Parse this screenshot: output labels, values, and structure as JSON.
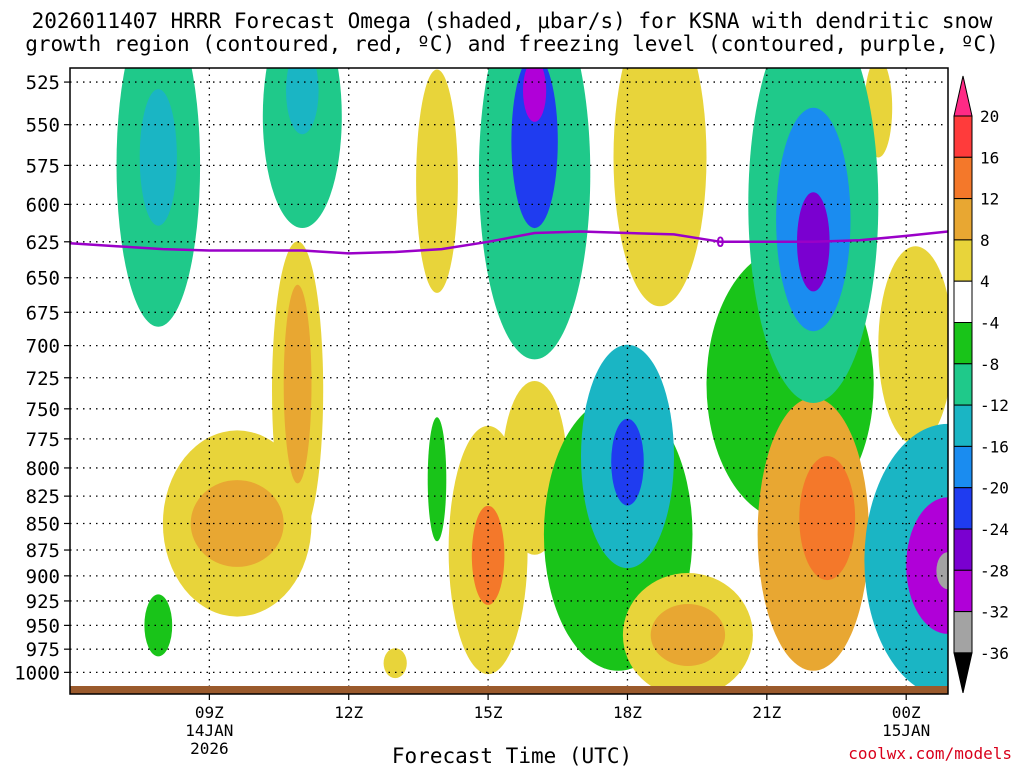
{
  "header": {
    "title_line1": "2026011407 HRRR Forecast Omega (shaded, μbar/s) for KSNA with dendritic snow",
    "title_line2": "growth region (contoured, red, ºC) and freezing level (contoured, purple, ºC)"
  },
  "footer": {
    "xlabel": "Forecast Time (UTC)",
    "credit": "coolwx.com/models"
  },
  "chart_data": {
    "type": "heatmap",
    "x_hours": [
      6,
      24.9
    ],
    "x_ticks": [
      {
        "hour": 9,
        "label": "09Z",
        "date1": "14JAN",
        "date2": "2026"
      },
      {
        "hour": 12,
        "label": "12Z",
        "date1": "",
        "date2": ""
      },
      {
        "hour": 15,
        "label": "15Z",
        "date1": "",
        "date2": ""
      },
      {
        "hour": 18,
        "label": "18Z",
        "date1": "",
        "date2": ""
      },
      {
        "hour": 21,
        "label": "21Z",
        "date1": "",
        "date2": ""
      },
      {
        "hour": 24,
        "label": "00Z",
        "date1": "15JAN",
        "date2": ""
      }
    ],
    "pressure_levels": [
      525,
      550,
      575,
      600,
      625,
      650,
      675,
      700,
      725,
      750,
      775,
      800,
      825,
      850,
      875,
      900,
      925,
      950,
      975,
      1000
    ],
    "y_range_hpa": [
      517,
      1015
    ],
    "colorbar": {
      "labels": [
        "20",
        "16",
        "12",
        "8",
        "4",
        "-4",
        "-8",
        "-12",
        "-16",
        "-20",
        "-24",
        "-28",
        "-32",
        "-36"
      ],
      "colors": [
        "#ff2a85",
        "#ff3b3b",
        "#f4782a",
        "#e8a732",
        "#e8d43a",
        "#ffffff",
        "#19c419",
        "#1fc98a",
        "#1ab5c4",
        "#1a8cf0",
        "#1f3cf0",
        "#7a00d0",
        "#b000d8",
        "#a3a3a3",
        "#000000"
      ]
    },
    "freezing_level_label": "0",
    "freezing_level": [
      [
        6,
        626
      ],
      [
        7,
        628
      ],
      [
        8,
        630
      ],
      [
        9,
        631
      ],
      [
        10,
        631
      ],
      [
        11,
        631
      ],
      [
        12,
        633
      ],
      [
        13,
        632
      ],
      [
        14,
        630
      ],
      [
        15,
        625
      ],
      [
        16,
        619
      ],
      [
        17,
        618
      ],
      [
        18,
        619
      ],
      [
        19,
        620
      ],
      [
        20,
        625
      ],
      [
        21,
        625
      ],
      [
        22,
        625
      ],
      [
        23,
        624
      ],
      [
        24,
        621
      ],
      [
        24.9,
        618
      ]
    ],
    "omega_features": [
      {
        "name": "ascent-0800-525",
        "hour": 7.9,
        "hpa": 575,
        "rh": 0.9,
        "rp": 130,
        "val": -8
      },
      {
        "name": "ascent-0800-core",
        "hour": 7.9,
        "hpa": 570,
        "rh": 0.4,
        "rp": 55,
        "val": -12
      },
      {
        "name": "ascent-1100-525",
        "hour": 11.0,
        "hpa": 545,
        "rh": 0.85,
        "rp": 90,
        "val": -8
      },
      {
        "name": "ascent-1100-core",
        "hour": 11.0,
        "hpa": 530,
        "rh": 0.35,
        "rp": 35,
        "val": -12
      },
      {
        "name": "descent-0930-850",
        "hour": 9.6,
        "hpa": 850,
        "rh": 1.6,
        "rp": 75,
        "val": 6
      },
      {
        "name": "descent-0930-core",
        "hour": 9.6,
        "hpa": 850,
        "rh": 1.0,
        "rp": 35,
        "val": 10
      },
      {
        "name": "descent-1100-750",
        "hour": 10.9,
        "hpa": 735,
        "rh": 0.55,
        "rp": 120,
        "val": 6
      },
      {
        "name": "descent-1100-core",
        "hour": 10.9,
        "hpa": 730,
        "rh": 0.3,
        "rp": 80,
        "val": 9
      },
      {
        "name": "descent-1400-590",
        "hour": 13.9,
        "hpa": 585,
        "rh": 0.45,
        "rp": 90,
        "val": 6
      },
      {
        "name": "descent-1500-880",
        "hour": 15.0,
        "hpa": 875,
        "rh": 0.85,
        "rp": 100,
        "val": 7
      },
      {
        "name": "descent-1500-core",
        "hour": 15.0,
        "hpa": 880,
        "rh": 0.35,
        "rp": 40,
        "val": 14
      },
      {
        "name": "descent-1600-790",
        "hour": 16.0,
        "hpa": 800,
        "rh": 0.7,
        "rp": 70,
        "val": 6
      },
      {
        "name": "ascent-1600-550",
        "hour": 16.0,
        "hpa": 580,
        "rh": 1.2,
        "rp": 150,
        "val": -10
      },
      {
        "name": "ascent-1600-core",
        "hour": 16.0,
        "hpa": 560,
        "rh": 0.5,
        "rp": 70,
        "val": -22
      },
      {
        "name": "ascent-1630-top",
        "hour": 16.0,
        "hpa": 530,
        "rh": 0.25,
        "rp": 25,
        "val": -29
      },
      {
        "name": "ascent-1800-800",
        "hour": 18.0,
        "hpa": 790,
        "rh": 1.0,
        "rp": 90,
        "val": -12
      },
      {
        "name": "ascent-1800-core",
        "hour": 18.0,
        "hpa": 795,
        "rh": 0.35,
        "rp": 35,
        "val": -22
      },
      {
        "name": "ascent-1800-wide",
        "hour": 17.8,
        "hpa": 860,
        "rh": 1.6,
        "rp": 110,
        "val": -6
      },
      {
        "name": "descent-1900-950",
        "hour": 19.3,
        "hpa": 960,
        "rh": 1.4,
        "rp": 50,
        "val": 6
      },
      {
        "name": "descent-1900-core",
        "hour": 19.3,
        "hpa": 960,
        "rh": 0.8,
        "rp": 25,
        "val": 10
      },
      {
        "name": "descent-1830-550",
        "hour": 18.7,
        "hpa": 570,
        "rh": 1.0,
        "rp": 120,
        "val": 5
      },
      {
        "name": "ascent-2200-575",
        "hour": 22.0,
        "hpa": 600,
        "rh": 1.4,
        "rp": 160,
        "val": -10
      },
      {
        "name": "ascent-2200-mid",
        "hour": 22.0,
        "hpa": 610,
        "rh": 0.8,
        "rp": 90,
        "val": -18
      },
      {
        "name": "ascent-2200-core",
        "hour": 22.0,
        "hpa": 625,
        "rh": 0.35,
        "rp": 40,
        "val": -26
      },
      {
        "name": "ascent-2150-low",
        "hour": 21.5,
        "hpa": 730,
        "rh": 1.8,
        "rp": 110,
        "val": -7
      },
      {
        "name": "descent-2200-850",
        "hour": 22.0,
        "hpa": 860,
        "rh": 1.2,
        "rp": 110,
        "val": 8
      },
      {
        "name": "descent-2200-core",
        "hour": 22.3,
        "hpa": 845,
        "rh": 0.6,
        "rp": 50,
        "val": 14
      },
      {
        "name": "descent-2330-530",
        "hour": 23.4,
        "hpa": 540,
        "rh": 0.3,
        "rp": 40,
        "val": 6
      },
      {
        "name": "descent-2400-700",
        "hour": 24.2,
        "hpa": 700,
        "rh": 0.8,
        "rp": 80,
        "val": 7
      },
      {
        "name": "ascent-2500-880",
        "hour": 24.9,
        "hpa": 885,
        "rh": 1.8,
        "rp": 110,
        "val": -12
      },
      {
        "name": "ascent-2500-core",
        "hour": 24.9,
        "hpa": 890,
        "rh": 0.9,
        "rp": 55,
        "val": -28
      },
      {
        "name": "ascent-2500-eye",
        "hour": 24.9,
        "hpa": 895,
        "rh": 0.25,
        "rp": 15,
        "val": -34
      },
      {
        "name": "ascent-0800-950",
        "hour": 7.9,
        "hpa": 950,
        "rh": 0.3,
        "rp": 25,
        "val": -7
      },
      {
        "name": "ascent-1400-800",
        "hour": 13.9,
        "hpa": 810,
        "rh": 0.2,
        "rp": 50,
        "val": -7
      },
      {
        "name": "descent-1300-990",
        "hour": 13.0,
        "hpa": 990,
        "rh": 0.25,
        "rp": 12,
        "val": 6
      }
    ]
  }
}
